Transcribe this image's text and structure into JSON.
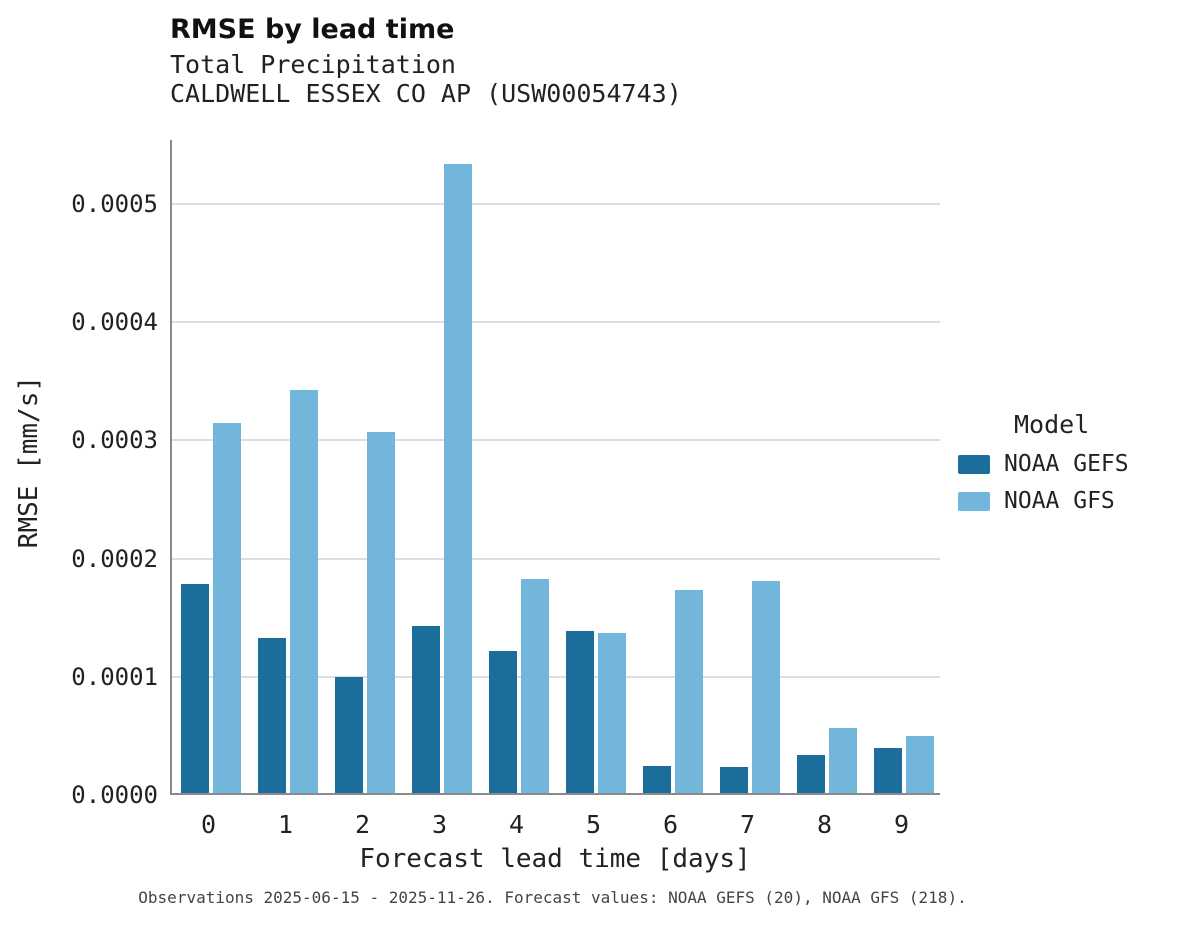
{
  "chart_data": {
    "type": "bar",
    "title": "RMSE by lead time",
    "subtitle_lines": [
      "Total Precipitation",
      "CALDWELL ESSEX CO AP (USW00054743)"
    ],
    "xlabel": "Forecast lead time [days]",
    "ylabel": "RMSE [mm/s]",
    "categories": [
      "0",
      "1",
      "2",
      "3",
      "4",
      "5",
      "6",
      "7",
      "8",
      "9"
    ],
    "series": [
      {
        "name": "NOAA GEFS",
        "color": "#1b6d9b",
        "values": [
          0.000177,
          0.000131,
          9.8e-05,
          0.000141,
          0.00012,
          0.000137,
          2.3e-05,
          2.2e-05,
          3.2e-05,
          3.8e-05
        ]
      },
      {
        "name": "NOAA GFS",
        "color": "#72b7db",
        "values": [
          0.000313,
          0.000341,
          0.000305,
          0.000532,
          0.000181,
          0.000135,
          0.000172,
          0.000179,
          5.5e-05,
          4.8e-05
        ]
      }
    ],
    "ylim": [
      0,
      0.000554
    ],
    "yticks": [
      {
        "value": 0.0,
        "label": "0.0000"
      },
      {
        "value": 0.0001,
        "label": "0.0001"
      },
      {
        "value": 0.0002,
        "label": "0.0002"
      },
      {
        "value": 0.0003,
        "label": "0.0003"
      },
      {
        "value": 0.0004,
        "label": "0.0004"
      },
      {
        "value": 0.0005,
        "label": "0.0005"
      }
    ],
    "grid": "horizontal",
    "legend_position": "right",
    "legend_title": "Model",
    "caption": "Observations 2025-06-15 - 2025-11-26. Forecast values: NOAA GEFS (20), NOAA GFS (218)."
  }
}
